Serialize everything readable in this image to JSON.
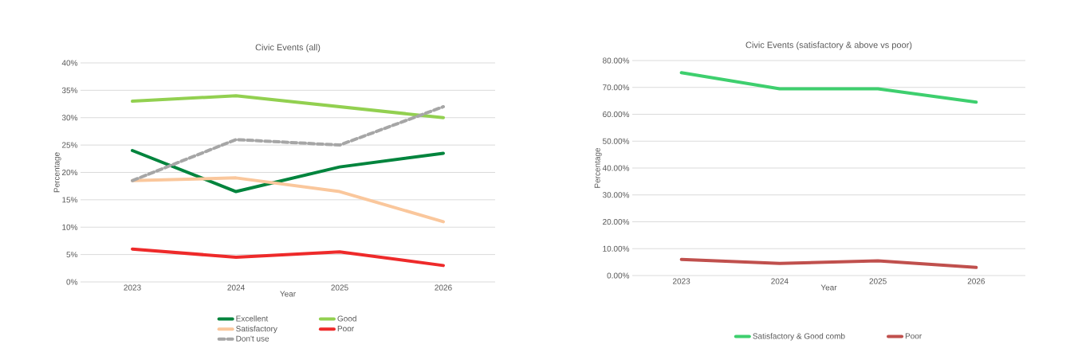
{
  "chart_data": [
    {
      "type": "line",
      "title": "Civic Events (all)",
      "xlabel": "Year",
      "ylabel": "Percentage",
      "categories": [
        "2023",
        "2024",
        "2025",
        "2026"
      ],
      "ylim": [
        0,
        40
      ],
      "yticks": [
        {
          "value": 0,
          "label": "0%"
        },
        {
          "value": 5,
          "label": "5%"
        },
        {
          "value": 10,
          "label": "10%"
        },
        {
          "value": 15,
          "label": "15%"
        },
        {
          "value": 20,
          "label": "20%"
        },
        {
          "value": 25,
          "label": "25%"
        },
        {
          "value": 30,
          "label": "30%"
        },
        {
          "value": 35,
          "label": "35%"
        },
        {
          "value": 40,
          "label": "40%"
        }
      ],
      "grid": "y",
      "legend": "bottom",
      "marker": "none",
      "series": [
        {
          "name": "Excellent",
          "color": "#00843d",
          "values": [
            24,
            16.5,
            21,
            23.5
          ]
        },
        {
          "name": "Good",
          "color": "#92d050",
          "values": [
            33,
            34,
            32,
            30
          ]
        },
        {
          "name": "Satisfactory",
          "color": "#fac79c",
          "values": [
            18.5,
            19,
            16.5,
            11
          ]
        },
        {
          "name": "Poor",
          "color": "#ee2a2a",
          "values": [
            6,
            4.5,
            5.5,
            3
          ]
        },
        {
          "name": "Don't use",
          "color": "#a6a6a6",
          "values": [
            18.5,
            26,
            25,
            32
          ],
          "line_style": "dashed"
        }
      ]
    },
    {
      "type": "line",
      "title": "Civic Events (satisfactory & above vs poor)",
      "xlabel": "Year",
      "ylabel": "Percentage",
      "categories": [
        "2023",
        "2024",
        "2025",
        "2026"
      ],
      "ylim": [
        0,
        80
      ],
      "yticks": [
        {
          "value": 0,
          "label": "0.00%"
        },
        {
          "value": 10,
          "label": "10.00%"
        },
        {
          "value": 20,
          "label": "20.00%"
        },
        {
          "value": 30,
          "label": "30.00%"
        },
        {
          "value": 40,
          "label": "40.00%"
        },
        {
          "value": 50,
          "label": "50.00%"
        },
        {
          "value": 60,
          "label": "60.00%"
        },
        {
          "value": 70,
          "label": "70.00%"
        },
        {
          "value": 80,
          "label": "80.00%"
        }
      ],
      "grid": "y",
      "legend": "bottom",
      "marker": "none",
      "series": [
        {
          "name": "Satisfactory & Good comb",
          "color": "#3ecf6e",
          "values": [
            75.5,
            69.5,
            69.5,
            64.5
          ]
        },
        {
          "name": "Poor",
          "color": "#c0504d",
          "values": [
            6,
            4.5,
            5.5,
            3
          ]
        }
      ]
    }
  ]
}
